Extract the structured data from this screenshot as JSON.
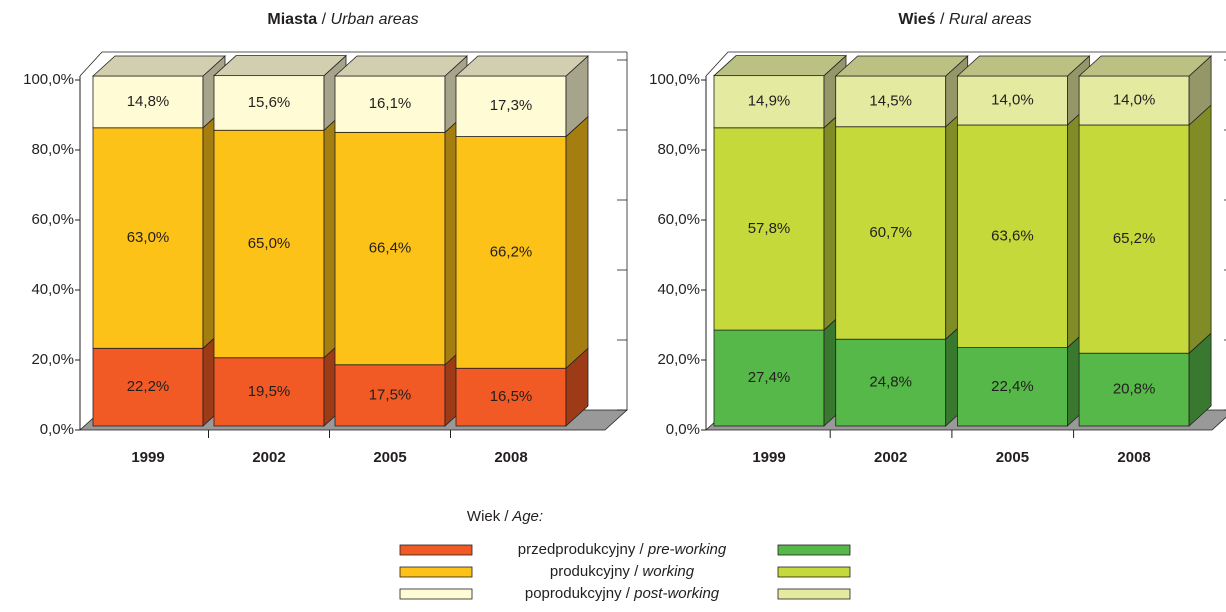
{
  "chart_data": [
    {
      "type": "bar",
      "stacked": true,
      "title": "Miasta / Urban areas",
      "categories": [
        "1999",
        "2002",
        "2005",
        "2008"
      ],
      "ylim": [
        0,
        100
      ],
      "yticks": [
        {
          "value": 0,
          "label": "0,0%"
        },
        {
          "value": 20,
          "label": "20,0%"
        },
        {
          "value": 40,
          "label": "40,0%"
        },
        {
          "value": 60,
          "label": "60,0%"
        },
        {
          "value": 80,
          "label": "80,0%"
        },
        {
          "value": 100,
          "label": "100,0%"
        }
      ],
      "series": [
        {
          "name": "przedprodukcyjny / pre-working",
          "color": "#f15a24",
          "values": [
            22.2,
            19.5,
            17.5,
            16.5
          ],
          "value_labels": [
            "22,2%",
            "19,5%",
            "17,5%",
            "16,5%"
          ]
        },
        {
          "name": "produkcyjny / working",
          "color": "#fdc218",
          "values": [
            63.0,
            65.0,
            66.4,
            66.2
          ],
          "value_labels": [
            "63,0%",
            "65,0%",
            "66,4%",
            "66,2%"
          ]
        },
        {
          "name": "poprodukcyjny / post-working",
          "color": "#fffcd5",
          "values": [
            14.8,
            15.6,
            16.1,
            17.3
          ],
          "value_labels": [
            "14,8%",
            "15,6%",
            "16,1%",
            "17,3%"
          ]
        }
      ]
    },
    {
      "type": "bar",
      "stacked": true,
      "title": "Wieś / Rural areas",
      "categories": [
        "1999",
        "2002",
        "2005",
        "2008"
      ],
      "ylim": [
        0,
        100
      ],
      "yticks": [
        {
          "value": 0,
          "label": "0,0%"
        },
        {
          "value": 20,
          "label": "20,0%"
        },
        {
          "value": 40,
          "label": "40,0%"
        },
        {
          "value": 60,
          "label": "60,0%"
        },
        {
          "value": 80,
          "label": "80,0%"
        },
        {
          "value": 100,
          "label": "100,0%"
        }
      ],
      "series": [
        {
          "name": "przedprodukcyjny / pre-working",
          "color": "#56b848",
          "values": [
            27.4,
            24.8,
            22.4,
            20.8
          ],
          "value_labels": [
            "27,4%",
            "24,8%",
            "22,4%",
            "20,8%"
          ]
        },
        {
          "name": "produkcyjny / working",
          "color": "#c5d93a",
          "values": [
            57.8,
            60.7,
            63.6,
            65.2
          ],
          "value_labels": [
            "57,8%",
            "60,7%",
            "63,6%",
            "65,2%"
          ]
        },
        {
          "name": "poprodukcyjny / post-working",
          "color": "#e4eaa0",
          "values": [
            14.9,
            14.5,
            14.0,
            14.0
          ],
          "value_labels": [
            "14,9%",
            "14,5%",
            "14,0%",
            "14,0%"
          ]
        }
      ]
    }
  ],
  "legend": {
    "title": "Wiek / Age:"
  }
}
